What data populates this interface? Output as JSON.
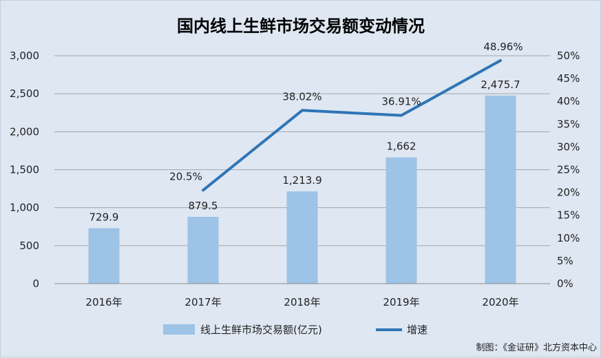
{
  "chart_data": {
    "type": "bar",
    "title": "国内线上生鲜市场交易额变动情况",
    "categories": [
      "2016年",
      "2017年",
      "2018年",
      "2019年",
      "2020年"
    ],
    "series": [
      {
        "name": "线上生鲜市场交易额(亿元)",
        "type": "bar",
        "axis": "left",
        "values": [
          729.9,
          879.5,
          1213.9,
          1662,
          2475.7
        ],
        "labels": [
          "729.9",
          "879.5",
          "1,213.9",
          "1,662",
          "2,475.7"
        ],
        "color": "#9dc3e6"
      },
      {
        "name": "增速",
        "type": "line",
        "axis": "right",
        "values": [
          null,
          20.5,
          38.02,
          36.91,
          48.96
        ],
        "labels": [
          "",
          "20.5%",
          "38.02%",
          "36.91%",
          "48.96%"
        ],
        "color": "#2e75b6"
      }
    ],
    "y_left": {
      "ylim": [
        0,
        3000
      ],
      "ticks": [
        0,
        500,
        1000,
        1500,
        2000,
        2500,
        3000
      ],
      "tick_labels": [
        "0",
        "500",
        "1,000",
        "1,500",
        "2,000",
        "2,500",
        "3,000"
      ]
    },
    "y_right": {
      "ylim": [
        0,
        50
      ],
      "ticks": [
        0,
        5,
        10,
        15,
        20,
        25,
        30,
        35,
        40,
        45,
        50
      ],
      "tick_labels": [
        "0%",
        "5%",
        "10%",
        "15%",
        "20%",
        "25%",
        "30%",
        "35%",
        "40%",
        "45%",
        "50%"
      ]
    },
    "grid": true,
    "legend_position": "bottom",
    "source": "制图：《金证研》北方资本中心"
  }
}
